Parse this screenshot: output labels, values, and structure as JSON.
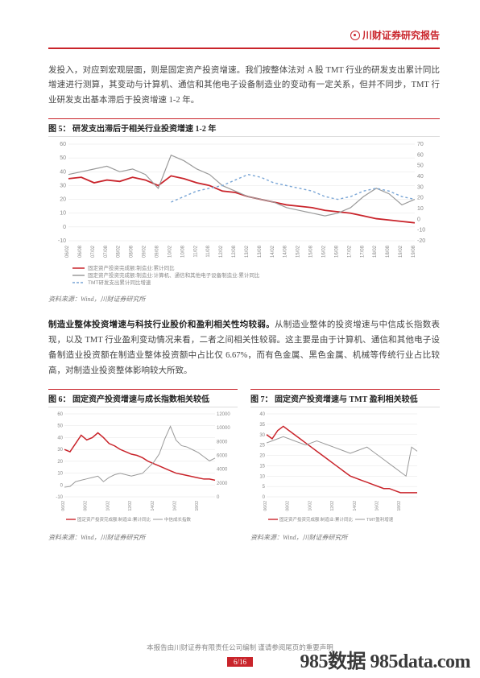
{
  "header": {
    "brand": "川财证券研究报告"
  },
  "para1": "发投入，对应到宏观层面，则是固定资产投资增速。我们按整体法对 A 股 TMT 行业的研发支出累计同比增速进行测算，其变动与计算机、通信和其他电子设备制造业的变动有一定关系，但并不同步，TMT 行业研发支出基本滞后于投资增速 1-2 年。",
  "fig5": {
    "label": "图 5：",
    "title": "研发支出滞后于相关行业投资增速 1-2 年",
    "type": "line",
    "ylim_left": [
      -10,
      60
    ],
    "ytick_left": [
      -10,
      0,
      10,
      20,
      30,
      40,
      50,
      60
    ],
    "ylim_right": [
      -20,
      70
    ],
    "ytick_right": [
      -20,
      -10,
      0,
      10,
      20,
      30,
      40,
      50,
      60,
      70
    ],
    "x_labels": [
      "06/02",
      "06/08",
      "07/02",
      "07/08",
      "08/02",
      "08/08",
      "09/02",
      "09/08",
      "10/02",
      "10/08",
      "11/02",
      "11/08",
      "12/02",
      "12/08",
      "13/02",
      "13/08",
      "14/02",
      "14/08",
      "15/02",
      "15/08",
      "16/02",
      "16/08",
      "17/02",
      "17/08",
      "18/02",
      "18/08",
      "19/02",
      "19/08"
    ],
    "s1_color": "#c9242b",
    "s1_values": [
      35,
      36,
      32,
      34,
      33,
      36,
      34,
      30,
      37,
      35,
      32,
      30,
      26,
      25,
      22,
      20,
      18,
      16,
      15,
      14,
      12,
      11,
      10,
      8,
      6,
      5,
      4,
      3
    ],
    "s2_color": "#9a9a9a",
    "s2_values": [
      38,
      40,
      42,
      44,
      40,
      42,
      38,
      28,
      52,
      48,
      42,
      38,
      30,
      26,
      22,
      20,
      18,
      14,
      12,
      10,
      8,
      10,
      14,
      22,
      28,
      24,
      16,
      20
    ],
    "s3_color": "#7aa6d6",
    "s3_values": [
      null,
      null,
      null,
      null,
      null,
      null,
      null,
      null,
      18,
      22,
      26,
      28,
      30,
      34,
      38,
      36,
      32,
      30,
      28,
      26,
      22,
      20,
      22,
      26,
      28,
      26,
      22,
      20
    ],
    "legend": [
      "固定资产投资完成额:制造业:累计同比",
      "固定资产投资完成额:制造业:计算机、通信和其他电子设备制造业:累计同比",
      "TMT研发支出累计同比增速"
    ],
    "source": "资料来源：Wind，川财证券研究所"
  },
  "para2_bold": "制造业整体投资增速与科技行业股价和盈利相关性均较弱。",
  "para2": "从制造业整体的投资增速与中信成长指数表现，以及 TMT 行业盈利变动情况来看，二者之间相关性较弱。这主要是由于计算机、通信和其他电子设备制造业投资额在制造业整体投资额中占比仅 6.67%，而有色金属、黑色金属、机械等传统行业占比较高，对制造业投资整体影响较大所致。",
  "fig6": {
    "label": "图 6：",
    "title": "固定资产投资增速与成长指数相关较低",
    "type": "line",
    "ylim_left": [
      -10,
      60
    ],
    "ytick_left": [
      -10,
      0,
      10,
      20,
      30,
      40,
      50,
      60
    ],
    "ylim_right": [
      0,
      12000
    ],
    "ytick_right": [
      0,
      2000,
      4000,
      6000,
      8000,
      10000,
      12000
    ],
    "s1_color": "#c9242b",
    "s1_values": [
      30,
      28,
      35,
      42,
      38,
      40,
      44,
      40,
      35,
      33,
      30,
      28,
      26,
      25,
      23,
      20,
      18,
      16,
      14,
      12,
      10,
      9,
      8,
      7,
      6,
      5,
      5,
      4
    ],
    "s2_color": "#9a9a9a",
    "s2_values": [
      1400,
      1500,
      2200,
      2400,
      2600,
      2800,
      3000,
      2200,
      2800,
      3200,
      3400,
      3200,
      3000,
      3200,
      3400,
      4200,
      5000,
      6200,
      8400,
      10200,
      8200,
      7400,
      7200,
      6800,
      6400,
      5800,
      5200,
      5600
    ],
    "legend": [
      "固定资产投资完成额:制造业:累计同比",
      "中信成长指数"
    ],
    "source": "资料来源：Wind，川财证券研究所"
  },
  "fig7": {
    "label": "图 7：",
    "title": "固定资产投资增速与 TMT 盈利相关较低",
    "type": "line",
    "ylim_left": [
      0,
      40
    ],
    "ytick_left": [
      0,
      5,
      10,
      15,
      20,
      25,
      30,
      35,
      40
    ],
    "ylim_right": [
      -1,
      1
    ],
    "s1_color": "#c9242b",
    "s1_values": [
      30,
      28,
      32,
      34,
      32,
      30,
      28,
      26,
      24,
      22,
      20,
      18,
      16,
      14,
      12,
      10,
      9,
      8,
      7,
      6,
      5,
      4,
      4,
      3,
      2,
      2,
      2,
      2
    ],
    "s2_color": "#9a9a9a",
    "s2_values": [
      0.3,
      0.35,
      0.4,
      0.45,
      0.4,
      0.35,
      0.3,
      0.25,
      0.3,
      0.35,
      0.3,
      0.25,
      0.2,
      0.15,
      0.1,
      0.05,
      0.1,
      0.15,
      0.2,
      0.1,
      0.0,
      -0.1,
      -0.2,
      -0.3,
      -0.4,
      -0.5,
      0.2,
      0.1
    ],
    "legend": [
      "固定资产投资完成额:制造业:累计同比",
      "TMT盈利增速"
    ],
    "source": "资料来源：Wind，川财证券研究所"
  },
  "footer": {
    "note": "本报告由川财证券有限责任公司编制 谨请参阅尾页的重要声明",
    "page": "6/16"
  },
  "watermark": "985数据 985data.com",
  "style": {
    "accent": "#c9242b",
    "grid_color": "#e5e5e5",
    "axis_color": "#999",
    "background": "#ffffff",
    "x_label_font": 6,
    "y_label_font": 7
  }
}
